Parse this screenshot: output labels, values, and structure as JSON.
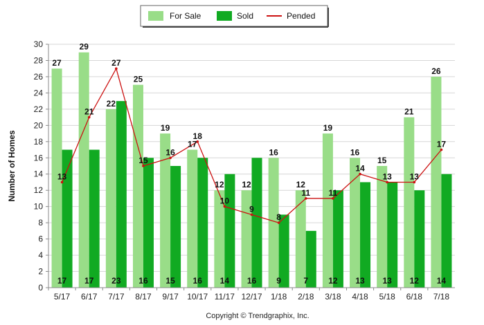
{
  "chart_data": {
    "type": "bar",
    "categories": [
      "5/17",
      "6/17",
      "7/17",
      "8/17",
      "9/17",
      "10/17",
      "11/17",
      "12/17",
      "1/18",
      "2/18",
      "3/18",
      "4/18",
      "5/18",
      "6/18",
      "7/18"
    ],
    "series": [
      {
        "name": "For Sale",
        "type": "bar",
        "color": "#99dd88",
        "values": [
          27,
          29,
          22,
          25,
          19,
          17,
          12,
          12,
          16,
          12,
          19,
          16,
          15,
          21,
          26
        ]
      },
      {
        "name": "Sold",
        "type": "bar",
        "color": "#11aa22",
        "values": [
          17,
          17,
          23,
          16,
          15,
          16,
          14,
          16,
          9,
          7,
          12,
          13,
          13,
          12,
          14
        ]
      },
      {
        "name": "Pended",
        "type": "line",
        "color": "#cc1111",
        "values": [
          13,
          21,
          27,
          15,
          16,
          18,
          10,
          9,
          8,
          11,
          11,
          14,
          13,
          13,
          17
        ]
      }
    ],
    "ylabel": "Number of Homes",
    "xlabel": "",
    "ylim": [
      0,
      30
    ],
    "yticks": [
      0,
      2,
      4,
      6,
      8,
      10,
      12,
      14,
      16,
      18,
      20,
      22,
      24,
      26,
      28,
      30
    ],
    "grid": "horizontal",
    "legend": "top-center"
  },
  "footer": {
    "copyright": "Copyright © Trendgraphix, Inc."
  }
}
